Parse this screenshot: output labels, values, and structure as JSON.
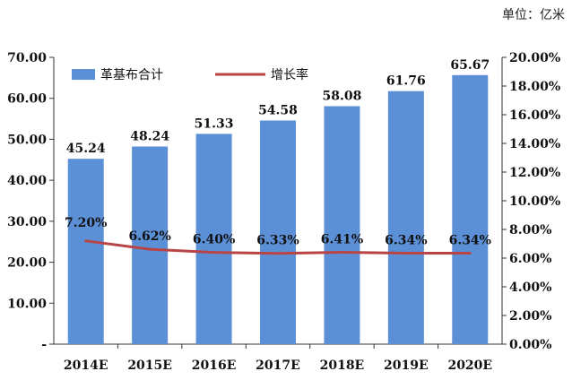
{
  "unit_label": "单位：亿米",
  "colors": {
    "bar": "#5B8FD6",
    "line": "#B84545",
    "axis": "#333333",
    "grid": "#D9D9D9"
  },
  "chart_data": {
    "type": "bar",
    "categories": [
      "2014E",
      "2015E",
      "2016E",
      "2017E",
      "2018E",
      "2019E",
      "2020E"
    ],
    "series": [
      {
        "name": "革基布合计",
        "type": "bar",
        "axis": "left",
        "values": [
          45.24,
          48.24,
          51.33,
          54.58,
          58.08,
          61.76,
          65.67
        ],
        "labels": [
          "45.24",
          "48.24",
          "51.33",
          "54.58",
          "58.08",
          "61.76",
          "65.67"
        ]
      },
      {
        "name": "增长率",
        "type": "line",
        "axis": "right",
        "values": [
          7.2,
          6.62,
          6.4,
          6.33,
          6.41,
          6.34,
          6.34
        ],
        "labels": [
          "7.20%",
          "6.62%",
          "6.40%",
          "6.33%",
          "6.41%",
          "6.34%",
          "6.34%"
        ]
      }
    ],
    "y_left": {
      "min": 0,
      "max": 70,
      "step": 10,
      "tick_labels": [
        "-",
        "10.00",
        "20.00",
        "30.00",
        "40.00",
        "50.00",
        "60.00",
        "70.00"
      ]
    },
    "y_right": {
      "min": 0,
      "max": 20,
      "step": 2,
      "tick_labels": [
        "0.00%",
        "2.00%",
        "4.00%",
        "6.00%",
        "8.00%",
        "10.00%",
        "12.00%",
        "14.00%",
        "16.00%",
        "18.00%",
        "20.00%"
      ]
    },
    "legend": {
      "placement": "top-left"
    },
    "grid": false
  }
}
